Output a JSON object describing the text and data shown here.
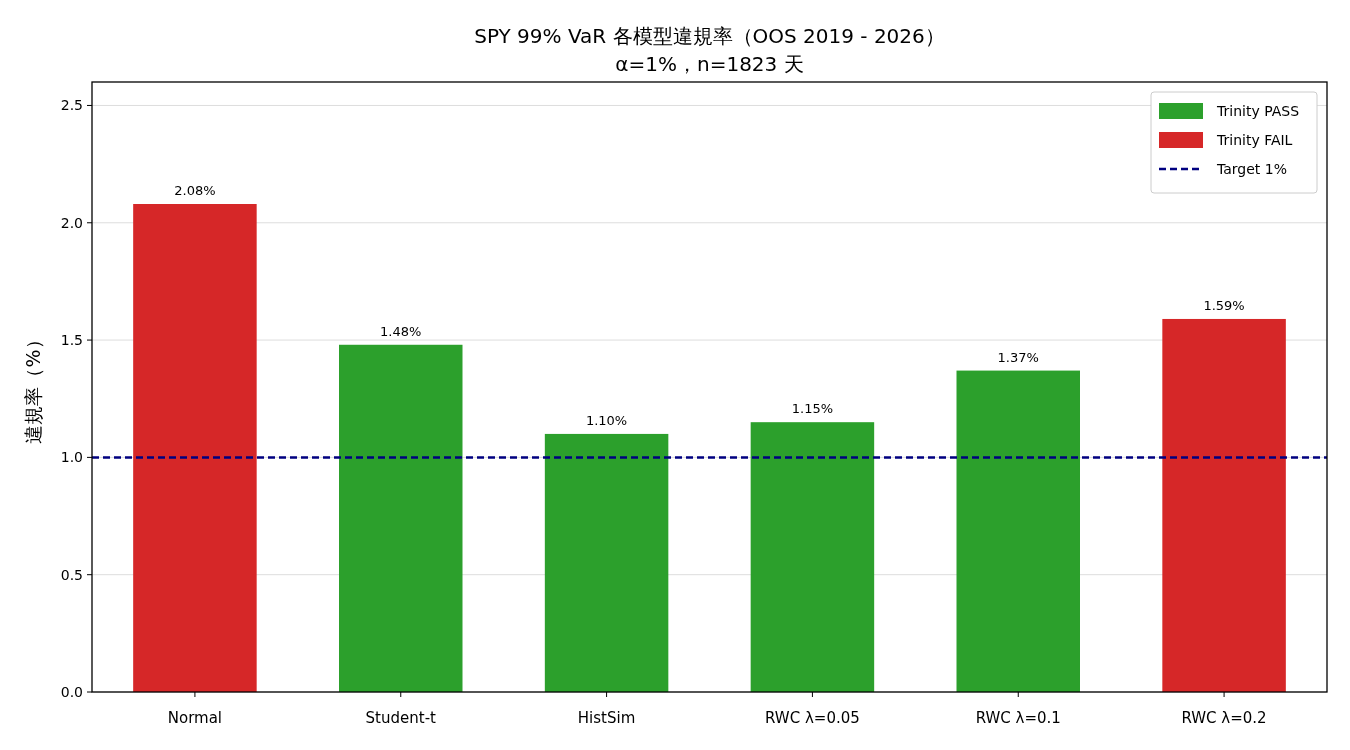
{
  "chart_data": {
    "type": "bar",
    "title": "SPY 99% VaR 各模型違規率（OOS 2019 - 2026）",
    "subtitle": "α=1%，n=1823 天",
    "ylabel": "違規率（%）",
    "categories": [
      "Normal",
      "Student-t",
      "HistSim",
      "RWC λ=0.05",
      "RWC λ=0.1",
      "RWC λ=0.2"
    ],
    "stacked": true,
    "series": [
      {
        "name": "Trinity PASS",
        "color": "#2ca02c",
        "values": [
          null,
          1.48,
          1.1,
          1.15,
          1.37,
          null
        ],
        "value_labels": [
          null,
          "1.48%",
          "1.10%",
          "1.15%",
          "1.37%",
          null
        ]
      },
      {
        "name": "Trinity FAIL",
        "color": "#d62728",
        "values": [
          2.08,
          null,
          null,
          null,
          null,
          1.59
        ],
        "value_labels": [
          "2.08%",
          null,
          null,
          null,
          null,
          "1.59%"
        ]
      }
    ],
    "ylim": [
      0,
      2.6
    ],
    "yticks": [
      {
        "value": 0,
        "label": "0.0"
      },
      {
        "value": 0.5,
        "label": "0.5"
      },
      {
        "value": 1,
        "label": "1.0"
      },
      {
        "value": 1.5,
        "label": "1.5"
      },
      {
        "value": 2,
        "label": "2.0"
      },
      {
        "value": 2.5,
        "label": "2.5"
      }
    ],
    "ref_lines": [
      {
        "axis": "y",
        "value": 1,
        "label": "Target 1%",
        "color": "#000080",
        "line_style": "dashed"
      }
    ],
    "grid": "y",
    "legend": "top right"
  }
}
